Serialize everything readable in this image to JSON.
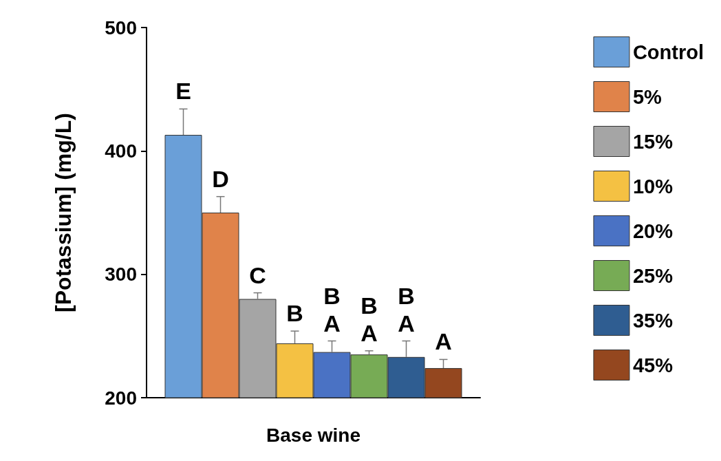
{
  "chart_data": {
    "type": "bar",
    "xlabel": "Base wine",
    "ylabel": "[Potassium] (mg/L)",
    "categories": [
      null
    ],
    "series": [
      {
        "name": "Control",
        "color": "#6a9fd8",
        "values": [
          413
        ],
        "errors": [
          [
            413,
            434
          ]
        ],
        "value_labels": [
          "E"
        ]
      },
      {
        "name": "5%",
        "color": "#e0834a",
        "values": [
          350
        ],
        "errors": [
          [
            350,
            363
          ]
        ],
        "value_labels": [
          "D"
        ]
      },
      {
        "name": "15%",
        "color": "#a5a5a5",
        "values": [
          280
        ],
        "errors": [
          [
            280,
            285
          ]
        ],
        "value_labels": [
          "C"
        ]
      },
      {
        "name": "10%",
        "color": "#f4c143",
        "values": [
          244
        ],
        "errors": [
          [
            244,
            254
          ]
        ],
        "value_labels": [
          "B"
        ]
      },
      {
        "name": "20%",
        "color": "#4a72c4",
        "values": [
          237
        ],
        "errors": [
          [
            237,
            246
          ]
        ],
        "value_labels": [
          "B\nA"
        ]
      },
      {
        "name": "25%",
        "color": "#77ab55",
        "values": [
          235
        ],
        "errors": [
          [
            235,
            238
          ]
        ],
        "value_labels": [
          "B\nA"
        ]
      },
      {
        "name": "35%",
        "color": "#2f5d91",
        "values": [
          233
        ],
        "errors": [
          [
            233,
            246
          ]
        ],
        "value_labels": [
          "B\nA"
        ]
      },
      {
        "name": "45%",
        "color": "#94471f",
        "values": [
          224
        ],
        "errors": [
          [
            224,
            231
          ]
        ],
        "value_labels": [
          "A"
        ]
      }
    ],
    "ylim": [
      200,
      500
    ],
    "yticks": [
      200,
      300,
      400,
      500
    ],
    "grid": false,
    "legend": "right"
  }
}
